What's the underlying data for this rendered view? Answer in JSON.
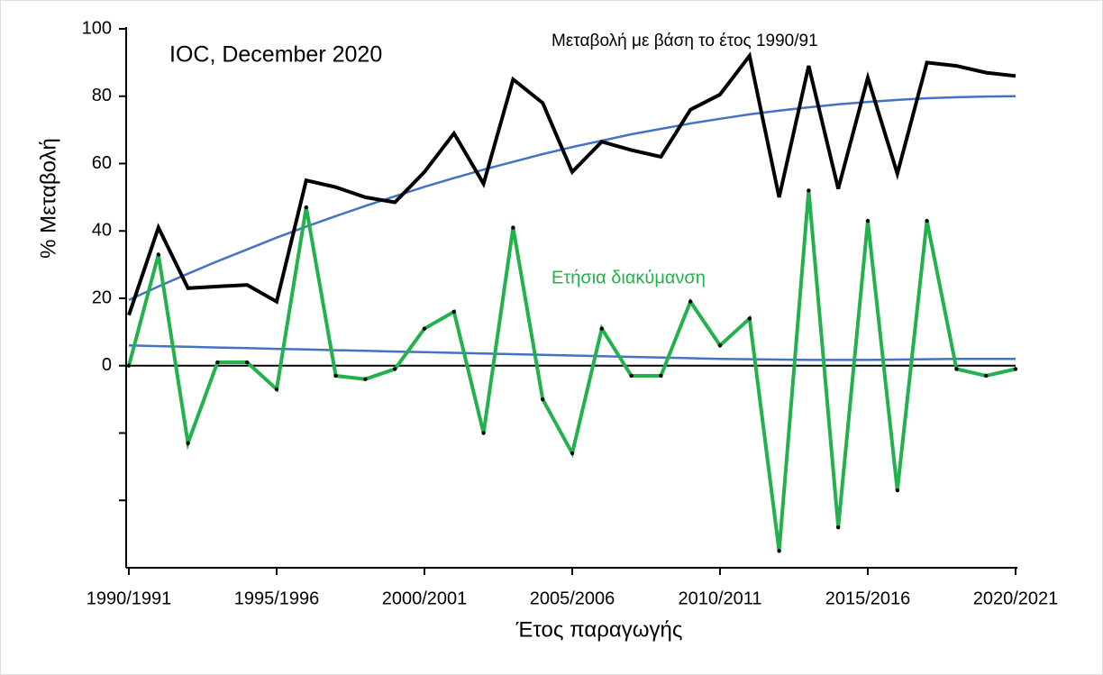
{
  "chart_data": {
    "type": "line",
    "title": "IOC, December 2020",
    "x_label": "Έτος παραγωγής",
    "y_label": "% Μεταβολή",
    "categories": [
      "1990/1991",
      null,
      null,
      null,
      null,
      "1995/1996",
      null,
      null,
      null,
      null,
      "2000/2001",
      null,
      null,
      null,
      null,
      "2005/2006",
      null,
      null,
      null,
      null,
      "2010/2011",
      null,
      null,
      null,
      null,
      "2015/2016",
      null,
      null,
      null,
      null,
      "2020/2021"
    ],
    "ylim": [
      -60,
      100
    ],
    "yticks": [
      0,
      20,
      40,
      60,
      80,
      100
    ],
    "yticks_minor": [
      -20,
      -40
    ],
    "series": [
      {
        "name": "Μεταβολή με βάση το έτος 1990/91",
        "color": "#000000",
        "values": [
          15,
          41,
          23,
          23.5,
          24,
          19,
          55,
          53,
          50,
          48.5,
          57.5,
          69,
          54,
          85,
          78,
          57.5,
          66.5,
          64,
          62,
          76,
          80.5,
          92,
          50,
          89,
          52.5,
          85.5,
          57,
          90,
          89,
          87,
          86
        ]
      },
      {
        "name": "Ετήσια διακύμανση",
        "color": "#22b14c",
        "values": [
          0,
          33,
          -23,
          1,
          1,
          -7,
          47,
          -3,
          -4,
          -1,
          11,
          16,
          -20,
          41,
          -10,
          -26,
          11,
          -3,
          -3,
          19,
          6,
          14,
          -55,
          52,
          -48,
          43,
          -37,
          43,
          -1,
          -3,
          -1
        ]
      }
    ],
    "trendlines": [
      {
        "color": "#4472c4",
        "values": [
          19.5,
          23.5,
          27.3,
          31.0,
          34.5,
          38.0,
          41.3,
          44.4,
          47.4,
          50.3,
          53.1,
          55.7,
          58.2,
          60.5,
          62.8,
          64.9,
          66.8,
          68.7,
          70.3,
          71.9,
          73.3,
          74.6,
          75.7,
          76.7,
          77.6,
          78.3,
          78.9,
          79.4,
          79.7,
          79.9,
          80.0
        ]
      },
      {
        "color": "#4472c4",
        "values": [
          6,
          5.8,
          5.6,
          5.4,
          5.2,
          5.0,
          4.8,
          4.6,
          4.4,
          4.2,
          4.0,
          3.8,
          3.6,
          3.4,
          3.2,
          3.0,
          2.8,
          2.6,
          2.4,
          2.2,
          2.0,
          1.9,
          1.8,
          1.7,
          1.7,
          1.7,
          1.8,
          1.9,
          2.0,
          2.0,
          2.0
        ]
      }
    ]
  }
}
